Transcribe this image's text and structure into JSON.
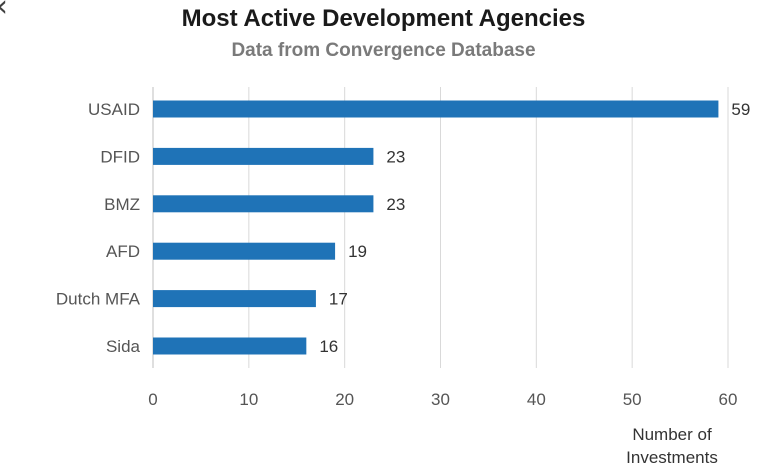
{
  "nav": {
    "back_icon": "chevron-left-icon",
    "back_glyph": "‹"
  },
  "chart_data": {
    "type": "bar",
    "orientation": "horizontal",
    "title": "Most Active Development Agencies",
    "subtitle": "Data from Convergence Database",
    "xlabel_lines": [
      "Number of",
      "Investments"
    ],
    "ylabel": "",
    "categories": [
      "USAID",
      "DFID",
      "BMZ",
      "AFD",
      "Dutch MFA",
      "Sida"
    ],
    "values": [
      59,
      23,
      23,
      19,
      17,
      16
    ],
    "xlim": [
      0,
      60
    ],
    "xticks": [
      0,
      10,
      20,
      30,
      40,
      50,
      60
    ],
    "grid": "vertical",
    "legend": "none",
    "bar_color": "#1f73b7",
    "grid_color": "#d9d9d9",
    "data_labels": true
  }
}
